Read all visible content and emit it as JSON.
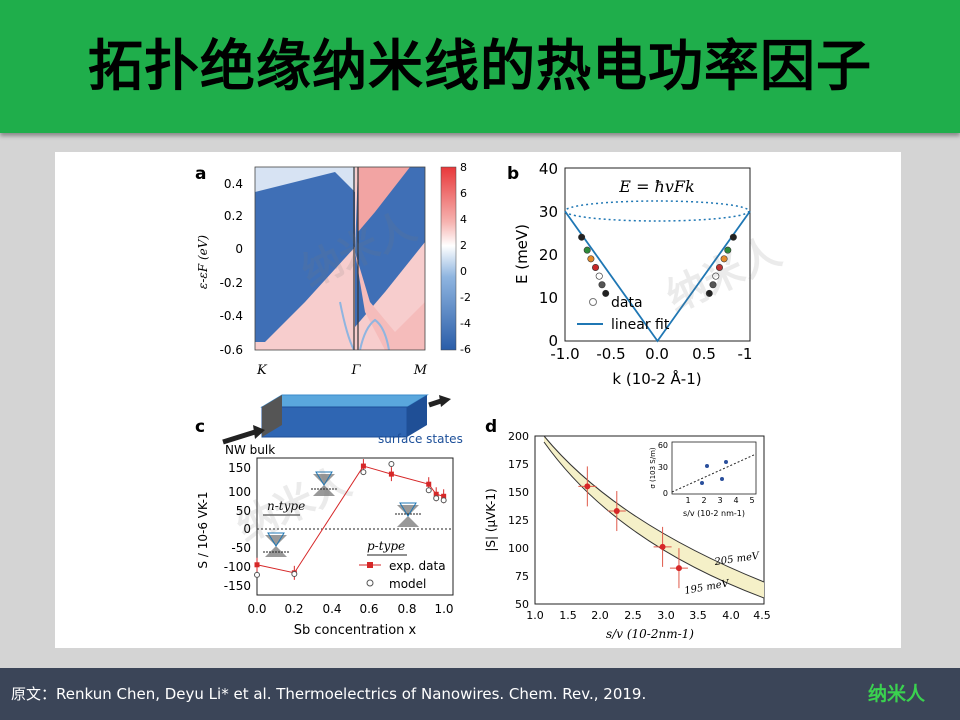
{
  "title": "拓扑绝缘纳米线的热电功率因子",
  "footer": {
    "citation": "原文：Renkun Chen, Deyu Li* et al. Thermoelectrics of Nanowires. Chem. Rev., 2019.",
    "brand": "纳米人"
  },
  "watermark": "纳米人",
  "colors": {
    "title_bar": "#1fae4b",
    "footer_bar": "#3b4558",
    "brand": "#3ad24f",
    "data_red": "#d62728",
    "fit_blue": "#1f77b4"
  },
  "panels": {
    "a": {
      "label": "a",
      "ylabel": "ε-εF (eV)",
      "yticks": [
        "0.4",
        "0.2",
        "0",
        "-0.2",
        "-0.4",
        "-0.6"
      ],
      "xticks": [
        "K",
        "Γ",
        "M"
      ],
      "colorbar_ticks": [
        "8",
        "6",
        "4",
        "2",
        "0",
        "-2",
        "-4",
        "-6"
      ]
    },
    "b": {
      "label": "b",
      "equation": "E = ħvFk",
      "ylabel": "E (meV)",
      "xlabel": "k (10-2 Å-1)",
      "yticks": [
        "0",
        "10",
        "20",
        "30",
        "40"
      ],
      "xticks": [
        "-1.0",
        "-0.5",
        "0.0",
        "0.5",
        "-1"
      ],
      "legend": [
        "data",
        "linear fit"
      ]
    },
    "c": {
      "label": "c",
      "schematic_labels": [
        "NW bulk",
        "surface states"
      ],
      "ylabel": "S / 10-6 VK-1",
      "xlabel": "Sb concentration x",
      "yticks": [
        "150",
        "100",
        "50",
        "0",
        "-50",
        "-100",
        "-150"
      ],
      "xticks": [
        "0.0",
        "0.2",
        "0.4",
        "0.6",
        "0.8",
        "1.0"
      ],
      "annotations": [
        "n-type",
        "p-type"
      ],
      "legend": [
        "exp. data",
        "model"
      ]
    },
    "d": {
      "label": "d",
      "ylabel": "|S| (μVK-1)",
      "xlabel": "s/v (10-2nm-1)",
      "yticks": [
        "200",
        "175",
        "150",
        "125",
        "100",
        "75",
        "50"
      ],
      "xticks": [
        "1.0",
        "1.5",
        "2.0",
        "2.5",
        "3.0",
        "3.5",
        "4.0",
        "4.5"
      ],
      "curve_labels": [
        "205 meV",
        "195 meV"
      ],
      "inset": {
        "ylabel": "σ (103 S/m)",
        "xlabel": "s/v (10-2 nm-1)",
        "yticks": [
          "60",
          "30",
          "0"
        ],
        "xticks": [
          "1",
          "2",
          "3",
          "4",
          "5"
        ]
      }
    }
  },
  "chart_data": [
    {
      "type": "heatmap",
      "panel": "a",
      "ylabel": "ε-εF (eV)",
      "ylim": [
        -0.6,
        0.5
      ],
      "x_categories": [
        "K",
        "Γ",
        "M"
      ],
      "colorbar_range": [
        -6,
        8
      ]
    },
    {
      "type": "scatter",
      "panel": "b",
      "xlabel": "k (10-2 Å-1)",
      "ylabel": "E (meV)",
      "xlim": [
        -1.0,
        1.0
      ],
      "ylim": [
        0,
        40
      ],
      "series": [
        {
          "name": "data",
          "x": [
            -0.82,
            -0.76,
            -0.72,
            -0.67,
            -0.63,
            -0.6,
            -0.56,
            0.56,
            0.6,
            0.63,
            0.67,
            0.72,
            0.76,
            0.82
          ],
          "y": [
            24,
            21,
            19,
            17,
            15,
            13,
            11,
            11,
            13,
            15,
            17,
            19,
            21,
            24
          ]
        },
        {
          "name": "linear fit",
          "x": [
            -1.0,
            0.0,
            1.0
          ],
          "y": [
            30,
            0,
            30
          ]
        }
      ]
    },
    {
      "type": "line",
      "panel": "c",
      "xlabel": "Sb concentration x",
      "ylabel": "S / 10-6 VK-1",
      "xlim": [
        0.0,
        1.05
      ],
      "ylim": [
        -170,
        170
      ],
      "series": [
        {
          "name": "exp. data",
          "x": [
            0.0,
            0.2,
            0.57,
            0.72,
            0.92,
            0.96,
            1.0
          ],
          "y": [
            -95,
            -115,
            150,
            130,
            105,
            80,
            75
          ]
        },
        {
          "name": "model",
          "x": [
            0.0,
            0.2,
            0.57,
            0.72,
            0.92,
            0.96,
            1.0
          ],
          "y": [
            -120,
            -118,
            135,
            155,
            90,
            70,
            65
          ]
        }
      ]
    },
    {
      "type": "scatter",
      "panel": "d",
      "xlabel": "s/v (10-2nm-1)",
      "ylabel": "|S| (μVK-1)",
      "xlim": [
        1.0,
        4.5
      ],
      "ylim": [
        50,
        200
      ],
      "series": [
        {
          "name": "data",
          "x": [
            1.8,
            2.25,
            2.95,
            3.2
          ],
          "y": [
            155,
            133,
            101,
            82
          ]
        }
      ]
    }
  ]
}
